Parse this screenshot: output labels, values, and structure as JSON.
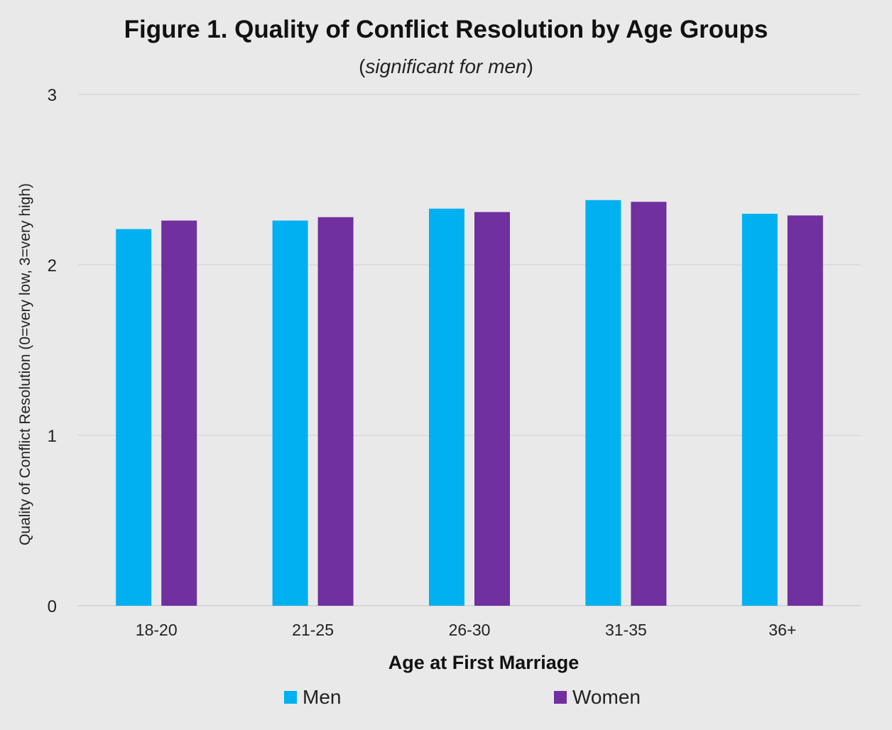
{
  "chart_data": {
    "type": "bar",
    "title": "Figure 1. Quality of Conflict Resolution by Age Groups",
    "subtitle_open": "(",
    "subtitle_em": "significant for men",
    "subtitle_close": ")",
    "xlabel": "Age at First Marriage",
    "ylabel": "Quality of Conflict Resolution (0=very low, 3=very high)",
    "categories": [
      "18-20",
      "21-25",
      "26-30",
      "31-35",
      "36+"
    ],
    "ylim": [
      0,
      3
    ],
    "yticks": [
      "0",
      "1",
      "2",
      "3"
    ],
    "grid": true,
    "legend_position": "bottom",
    "series": [
      {
        "name": "Men",
        "color": "#00b0f0",
        "values": [
          2.21,
          2.26,
          2.33,
          2.38,
          2.3
        ]
      },
      {
        "name": "Women",
        "color": "#7030a0",
        "values": [
          2.26,
          2.28,
          2.31,
          2.37,
          2.29
        ]
      }
    ]
  }
}
